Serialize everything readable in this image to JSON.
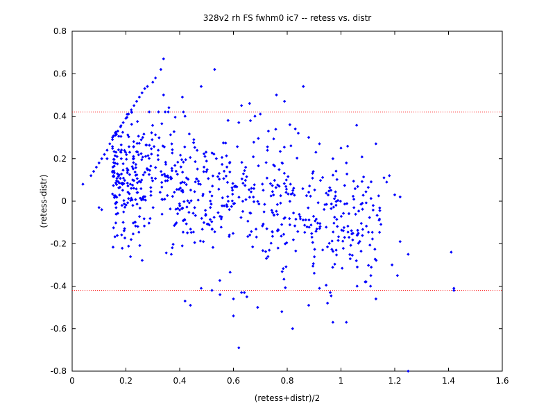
{
  "chart_data": {
    "type": "scatter",
    "title": "328v2 rh FS fwhm0 ic7 -- retess vs. distr",
    "xlabel": "(retess+distr)/2",
    "ylabel": "(retess-distr)",
    "xlim": [
      0,
      1.6
    ],
    "ylim": [
      -0.8,
      0.8
    ],
    "xticks": [
      0,
      0.2,
      0.4,
      0.6,
      0.8,
      1,
      1.2,
      1.4,
      1.6
    ],
    "yticks": [
      -0.8,
      -0.6,
      -0.4,
      -0.2,
      0,
      0.2,
      0.4,
      0.6,
      0.8
    ],
    "xtick_labels": [
      "0",
      "0.2",
      "0.4",
      "0.6",
      "0.8",
      "1",
      "1.2",
      "1.4",
      "1.6"
    ],
    "ytick_labels": [
      "-0.8",
      "-0.6",
      "-0.4",
      "-0.2",
      "0",
      "0.2",
      "0.4",
      "0.6",
      "0.8"
    ],
    "grid": false,
    "point_color": "#0000ff",
    "reference_line_color": "#ff0000",
    "reference_lines": [
      0.42,
      -0.42
    ],
    "points": [
      [
        0.04,
        0.08
      ],
      [
        0.07,
        0.12
      ],
      [
        0.08,
        0.14
      ],
      [
        0.09,
        0.16
      ],
      [
        0.1,
        0.18
      ],
      [
        0.11,
        0.2
      ],
      [
        0.12,
        0.22
      ],
      [
        0.13,
        0.24
      ],
      [
        0.14,
        0.27
      ],
      [
        0.15,
        0.29
      ],
      [
        0.16,
        0.31
      ],
      [
        0.17,
        0.33
      ],
      [
        0.18,
        0.35
      ],
      [
        0.19,
        0.37
      ],
      [
        0.2,
        0.39
      ],
      [
        0.21,
        0.41
      ],
      [
        0.22,
        0.43
      ],
      [
        0.23,
        0.45
      ],
      [
        0.24,
        0.47
      ],
      [
        0.25,
        0.49
      ],
      [
        0.26,
        0.51
      ],
      [
        0.27,
        0.53
      ],
      [
        0.28,
        0.54
      ],
      [
        0.3,
        0.56
      ],
      [
        0.31,
        0.58
      ],
      [
        0.33,
        0.62
      ],
      [
        0.34,
        0.67
      ],
      [
        0.1,
        -0.03
      ],
      [
        0.11,
        -0.04
      ],
      [
        0.13,
        0.2
      ],
      [
        0.15,
        0.14
      ],
      [
        0.53,
        0.62
      ],
      [
        0.34,
        0.5
      ],
      [
        0.41,
        0.49
      ],
      [
        0.48,
        0.54
      ],
      [
        0.63,
        0.45
      ],
      [
        0.66,
        0.46
      ],
      [
        0.68,
        0.4
      ],
      [
        0.7,
        0.41
      ],
      [
        0.76,
        0.5
      ],
      [
        0.79,
        0.47
      ],
      [
        0.86,
        0.54
      ],
      [
        0.36,
        0.44
      ],
      [
        0.42,
        0.4
      ],
      [
        0.58,
        0.38
      ],
      [
        0.62,
        0.37
      ],
      [
        0.73,
        0.33
      ],
      [
        0.81,
        0.36
      ],
      [
        0.83,
        0.34
      ],
      [
        0.88,
        0.3
      ],
      [
        0.92,
        0.27
      ],
      [
        1.0,
        0.25
      ],
      [
        1.13,
        0.27
      ],
      [
        1.16,
        0.11
      ],
      [
        1.18,
        0.12
      ],
      [
        1.17,
        0.09
      ],
      [
        1.2,
        0.03
      ],
      [
        1.22,
        0.02
      ],
      [
        0.97,
        0.2
      ],
      [
        1.02,
        0.18
      ],
      [
        0.48,
        -0.41
      ],
      [
        0.52,
        -0.42
      ],
      [
        0.55,
        -0.44
      ],
      [
        0.6,
        -0.46
      ],
      [
        0.63,
        -0.43
      ],
      [
        0.65,
        -0.45
      ],
      [
        0.44,
        -0.49
      ],
      [
        0.42,
        -0.47
      ],
      [
        0.6,
        -0.54
      ],
      [
        0.62,
        -0.69
      ],
      [
        0.69,
        -0.5
      ],
      [
        0.78,
        -0.52
      ],
      [
        0.82,
        -0.6
      ],
      [
        0.88,
        -0.49
      ],
      [
        0.95,
        -0.48
      ],
      [
        0.97,
        -0.57
      ],
      [
        1.02,
        -0.57
      ],
      [
        0.96,
        -0.43
      ],
      [
        1.13,
        -0.46
      ],
      [
        1.25,
        -0.8
      ],
      [
        1.42,
        -0.42
      ],
      [
        1.42,
        -0.41
      ],
      [
        1.41,
        -0.24
      ],
      [
        1.25,
        -0.25
      ],
      [
        1.22,
        -0.19
      ],
      [
        1.21,
        -0.35
      ],
      [
        1.19,
        -0.3
      ],
      [
        1.06,
        -0.4
      ],
      [
        1.09,
        -0.38
      ],
      [
        1.11,
        -0.4
      ],
      [
        0.92,
        -0.41
      ]
    ],
    "cluster": {
      "count": 720,
      "seed": 328,
      "x_range": [
        0.15,
        1.15
      ],
      "x_shape": 1.5,
      "y_center_at_x0": 0.17,
      "y_slope": -0.25,
      "y_spread": 0.15,
      "y_clip": [
        -0.5,
        0.42
      ]
    }
  }
}
